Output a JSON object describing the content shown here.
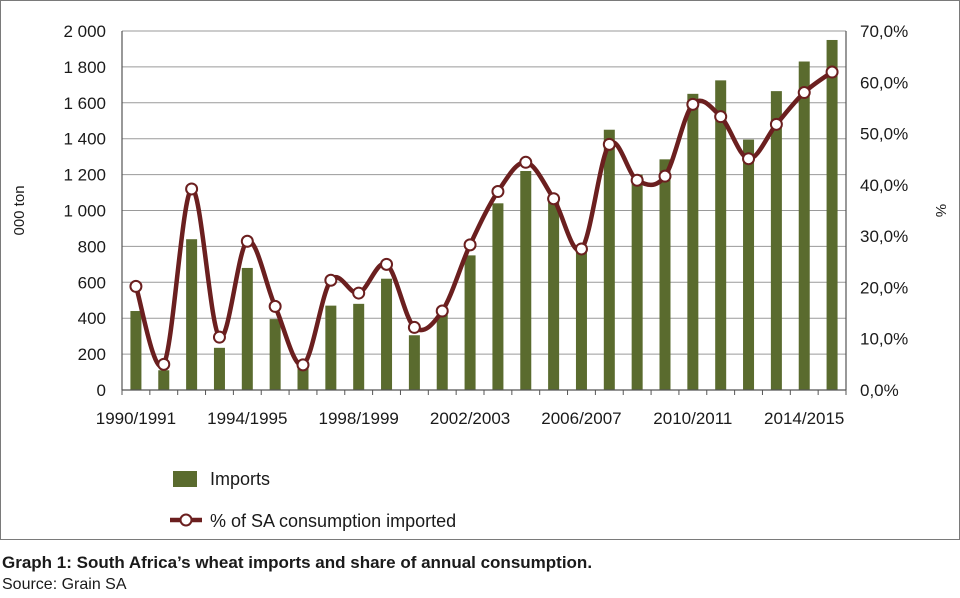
{
  "chart_data": {
    "type": "bar",
    "ylabel": "000 ton",
    "y2label": "%",
    "ylim": [
      0,
      2000
    ],
    "y2lim": [
      0,
      70
    ],
    "grid": true,
    "legend_placement": "bottom-left",
    "x": [
      "1990/1991",
      "1991/1992",
      "1992/1993",
      "1993/1994",
      "1994/1995",
      "1995/1996",
      "1996/1997",
      "1997/1998",
      "1998/1999",
      "1999/2000",
      "2000/2001",
      "2001/2002",
      "2002/2003",
      "2003/2004",
      "2004/2005",
      "2005/2006",
      "2006/2007",
      "2007/2008",
      "2008/2009",
      "2009/2010",
      "2010/2011",
      "2011/2012",
      "2012/2013",
      "2013/2014",
      "2014/2015",
      "2015/2016"
    ],
    "x_tick_labels": [
      "1990/1991",
      "1994/1995",
      "1998/1999",
      "2002/2003",
      "2006/2007",
      "2010/2011",
      "2014/2015"
    ],
    "y_tick_labels": [
      "0",
      "200",
      "400",
      "600",
      "800",
      "1 000",
      "1 200",
      "1 400",
      "1 600",
      "1 800",
      "2 000"
    ],
    "y2_tick_labels": [
      "0,0%",
      "10,0%",
      "20,0%",
      "30,0%",
      "40,0%",
      "50,0%",
      "60,0%",
      "70,0%"
    ],
    "series": [
      {
        "name": "Imports",
        "type": "bar",
        "axis": "left",
        "color": "#5a6b2e",
        "values": [
          440,
          110,
          840,
          235,
          680,
          395,
          130,
          470,
          480,
          620,
          305,
          420,
          750,
          1040,
          1220,
          1050,
          800,
          1450,
          1200,
          1285,
          1650,
          1725,
          1395,
          1665,
          1830,
          1950
        ]
      },
      {
        "name": "% of SA consumption imported",
        "type": "line",
        "axis": "right",
        "color": "#6b1f1f",
        "values": [
          20.2,
          5.0,
          39.2,
          10.3,
          29.0,
          16.3,
          4.9,
          21.4,
          18.9,
          24.5,
          12.2,
          15.4,
          28.3,
          38.7,
          44.4,
          37.3,
          27.5,
          47.9,
          40.9,
          41.7,
          55.7,
          53.3,
          45.1,
          51.8,
          58.0,
          62.0
        ]
      }
    ]
  },
  "caption": {
    "title": "Graph 1: South Africa’s wheat imports and share of annual consumption.",
    "source": "Source: Grain SA"
  }
}
